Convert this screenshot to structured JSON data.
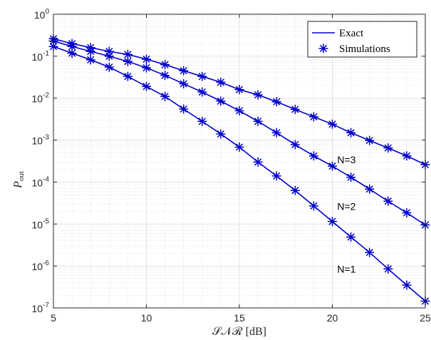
{
  "chart_data": {
    "type": "line",
    "xlabel": "𝒮𝒩ℛ [dB]",
    "ylabel": "P",
    "ylabel_sub": "out",
    "xlim": [
      5,
      25
    ],
    "ylim": [
      1e-07,
      1
    ],
    "yscale": "log",
    "grid": true,
    "legend_position": "top-right",
    "x_ticks": [
      "5",
      "10",
      "15",
      "20",
      "25"
    ],
    "y_ticks": [
      {
        "base": "10",
        "exp": "0"
      },
      {
        "base": "10",
        "exp": "-1"
      },
      {
        "base": "10",
        "exp": "-2"
      },
      {
        "base": "10",
        "exp": "-3"
      },
      {
        "base": "10",
        "exp": "-4"
      },
      {
        "base": "10",
        "exp": "-5"
      },
      {
        "base": "10",
        "exp": "-6"
      },
      {
        "base": "10",
        "exp": "-7"
      }
    ],
    "legend": [
      {
        "label": "Exact",
        "marker": "line"
      },
      {
        "label": "Simulations",
        "marker": "asterisk"
      }
    ],
    "color": "#0000cc",
    "x": [
      5,
      6,
      7,
      8,
      9,
      10,
      11,
      12,
      13,
      14,
      15,
      16,
      17,
      18,
      19,
      20,
      21,
      22,
      23,
      24,
      25
    ],
    "series": [
      {
        "annotation": "N=1",
        "values": [
          0.17,
          0.118,
          0.082,
          0.055,
          0.033,
          0.019,
          0.011,
          0.0055,
          0.0028,
          0.0014,
          0.00068,
          0.0003,
          0.00014,
          6.3e-05,
          2.7e-05,
          1.15e-05,
          4.9e-06,
          2.1e-06,
          8.5e-07,
          3.5e-07,
          1.45e-07
        ]
      },
      {
        "annotation": "N=2",
        "values": [
          0.23,
          0.17,
          0.13,
          0.1,
          0.075,
          0.053,
          0.035,
          0.022,
          0.014,
          0.0085,
          0.005,
          0.0028,
          0.0015,
          0.00078,
          0.00042,
          0.00024,
          0.00013,
          6.8e-05,
          3.5e-05,
          1.85e-05,
          9.5e-06
        ]
      },
      {
        "annotation": "N=3",
        "values": [
          0.26,
          0.2,
          0.16,
          0.13,
          0.11,
          0.085,
          0.063,
          0.045,
          0.033,
          0.024,
          0.016,
          0.012,
          0.0082,
          0.0054,
          0.0036,
          0.0024,
          0.0015,
          0.00098,
          0.00065,
          0.00042,
          0.00026
        ]
      }
    ]
  }
}
